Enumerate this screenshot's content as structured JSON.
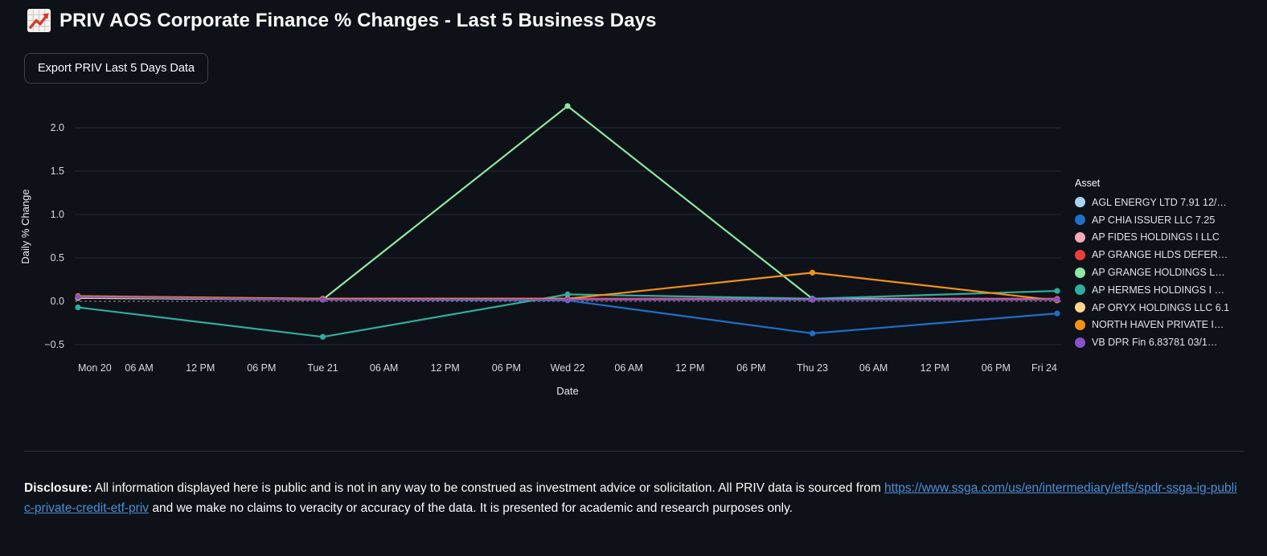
{
  "header": {
    "icon": "chart-increasing-icon",
    "title": "PRIV AOS Corporate Finance % Changes - Last 5 Business Days"
  },
  "toolbar": {
    "export_button_label": "Export PRIV Last 5 Days Data"
  },
  "chart_data": {
    "type": "line",
    "xlabel": "Date",
    "ylabel": "Daily % Change",
    "legend_title": "Asset",
    "legend_position": "right",
    "grid": "horizontal",
    "y_ticks": [
      2.0,
      1.5,
      1.0,
      0.5,
      0.0,
      -0.5
    ],
    "ylim": [
      -0.62,
      2.4
    ],
    "zero_line_style": "dashed",
    "x_tick_labels": [
      "Mon 20",
      "06 AM",
      "12 PM",
      "06 PM",
      "Tue 21",
      "06 AM",
      "12 PM",
      "06 PM",
      "Wed 22",
      "06 AM",
      "12 PM",
      "06 PM",
      "Thu 23",
      "06 AM",
      "12 PM",
      "06 PM",
      "Fri 24"
    ],
    "categories": [
      "Mon 20",
      "Tue 21",
      "Wed 22",
      "Thu 23",
      "Fri 24"
    ],
    "series": [
      {
        "name": "AGL ENERGY LTD 7.91 12/…",
        "color": "#a9d3f2",
        "values": [
          0.04,
          0.02,
          0.02,
          0.02,
          0.02
        ]
      },
      {
        "name": "AP CHIA ISSUER LLC 7.25",
        "color": "#1f6fc9",
        "values": [
          0.04,
          0.02,
          0.01,
          -0.37,
          -0.14
        ]
      },
      {
        "name": "AP FIDES HOLDINGS I LLC",
        "color": "#f4aab9",
        "values": [
          0.05,
          0.02,
          0.02,
          0.02,
          0.02
        ]
      },
      {
        "name": "AP GRANGE HLDS DEFER…",
        "color": "#ee3d3d",
        "values": [
          0.05,
          0.03,
          0.03,
          0.03,
          0.03
        ]
      },
      {
        "name": "AP GRANGE HOLDINGS L…",
        "color": "#8ce8a4",
        "values": [
          0.04,
          0.02,
          2.25,
          0.03,
          0.02
        ]
      },
      {
        "name": "AP HERMES HOLDINGS I …",
        "color": "#2fae9e",
        "values": [
          -0.07,
          -0.41,
          0.08,
          0.03,
          0.12
        ]
      },
      {
        "name": "AP ORYX HOLDINGS LLC 6.1",
        "color": "#f9d78c",
        "values": [
          0.04,
          0.02,
          0.02,
          0.02,
          0.02
        ]
      },
      {
        "name": "NORTH HAVEN PRIVATE I…",
        "color": "#f39118",
        "values": [
          0.06,
          0.03,
          0.03,
          0.33,
          0.01
        ]
      },
      {
        "name": "VB DPR Fin 6.83781 03/1…",
        "color": "#8b51c9",
        "values": [
          0.05,
          0.02,
          0.02,
          0.02,
          0.02
        ]
      }
    ]
  },
  "disclosure": {
    "label": "Disclosure:",
    "text_before_link": " All information displayed here is public and is not in any way to be construed as investment advice or solicitation. All PRIV data is sourced from ",
    "link_text": "https://www.ssga.com/us/en/intermediary/etfs/spdr-ssga-ig-public-private-credit-etf-priv",
    "text_after_link": " and we make no claims to veracity or accuracy of the data. It is presented for academic and research purposes only."
  },
  "colors": {
    "background": "#0e1117",
    "text": "#fafafa",
    "link": "#4a90d9",
    "grid_line": "#262c36",
    "zero_line": "#8a919d",
    "divider": "#2d323b",
    "button_border": "#3d4148",
    "emoji_line": "#d7372f"
  }
}
